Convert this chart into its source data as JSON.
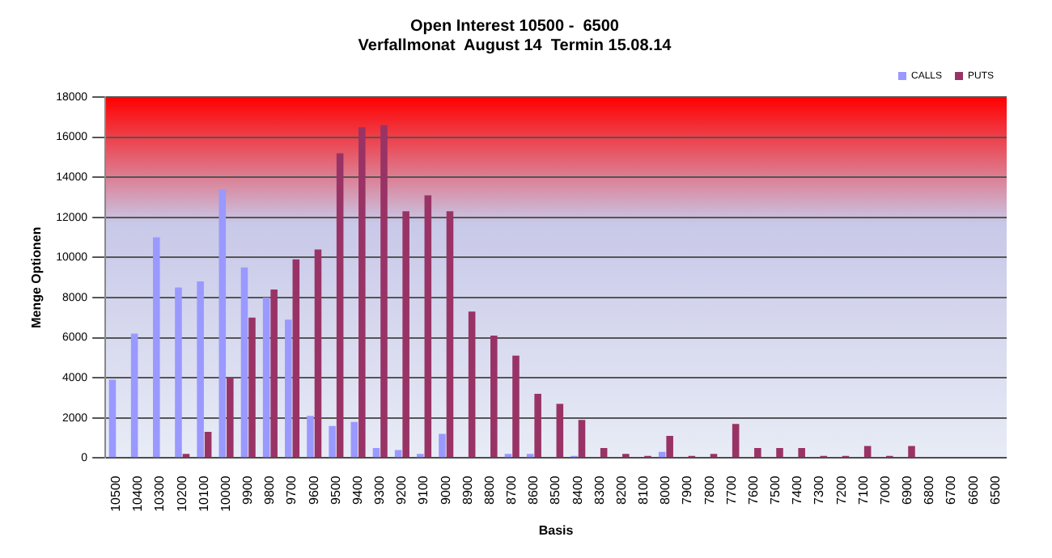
{
  "chart_data": {
    "type": "bar",
    "title": "Open Interest 10500 -  6500",
    "subtitle": "Verfallmonat  August 14  Termin 15.08.14",
    "xlabel": "Basis",
    "ylabel": "Menge Optionen",
    "categories": [
      "10500",
      "10400",
      "10300",
      "10200",
      "10100",
      "10000",
      "9900",
      "9800",
      "9700",
      "9600",
      "9500",
      "9400",
      "9300",
      "9200",
      "9100",
      "9000",
      "8900",
      "8800",
      "8700",
      "8600",
      "8500",
      "8400",
      "8300",
      "8200",
      "8100",
      "8000",
      "7900",
      "7800",
      "7700",
      "7600",
      "7500",
      "7400",
      "7300",
      "7200",
      "7100",
      "7000",
      "6900",
      "6800",
      "6700",
      "6600",
      "6500"
    ],
    "series": [
      {
        "name": "CALLS",
        "color": "#9999ff",
        "values": [
          3900,
          6200,
          11000,
          8500,
          8800,
          13400,
          9500,
          8000,
          6900,
          2100,
          1600,
          1800,
          500,
          400,
          200,
          1200,
          0,
          0,
          200,
          200,
          0,
          100,
          0,
          0,
          0,
          300,
          0,
          0,
          0,
          0,
          0,
          0,
          0,
          0,
          0,
          0,
          0,
          0,
          0,
          0,
          0
        ]
      },
      {
        "name": "PUTS",
        "color": "#993366",
        "values": [
          0,
          0,
          0,
          200,
          1300,
          4000,
          7000,
          8400,
          9900,
          10400,
          15200,
          16500,
          16600,
          12300,
          13100,
          12300,
          7300,
          6100,
          5100,
          3200,
          2700,
          1900,
          500,
          200,
          100,
          1100,
          100,
          200,
          1700,
          500,
          500,
          500,
          100,
          100,
          600,
          100,
          600,
          0,
          0,
          0,
          0
        ]
      }
    ],
    "ylim": [
      0,
      18000
    ],
    "yticks": [
      0,
      2000,
      4000,
      6000,
      8000,
      10000,
      12000,
      14000,
      16000,
      18000
    ],
    "grid": "y",
    "legend": "top right"
  }
}
